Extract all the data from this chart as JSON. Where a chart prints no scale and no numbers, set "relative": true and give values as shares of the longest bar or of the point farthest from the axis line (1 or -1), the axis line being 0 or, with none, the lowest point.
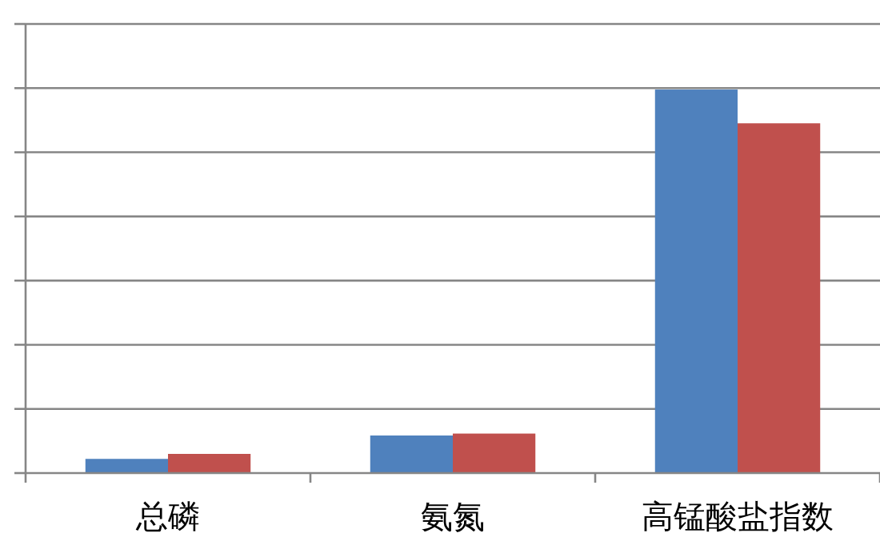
{
  "chart_data": {
    "type": "bar",
    "relative": true,
    "grid": "y",
    "categories": [
      "总磷",
      "氨氮",
      "高锰酸盐指数"
    ],
    "series": [
      {
        "color": "#4f81bd",
        "values": [
          0.037,
          0.098,
          1
        ]
      },
      {
        "color": "#c0504d",
        "values": [
          0.05,
          0.103,
          0.912
        ]
      }
    ]
  }
}
